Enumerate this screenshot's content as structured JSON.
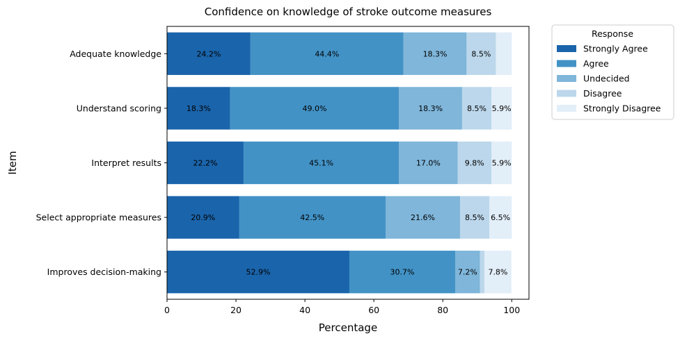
{
  "chart_data": {
    "type": "bar",
    "orientation": "horizontal",
    "stacked": true,
    "title": "Confidence on knowledge of stroke outcome measures",
    "xlabel": "Percentage",
    "ylabel": "Item",
    "xlim": [
      0,
      105
    ],
    "xticks": [
      0,
      20,
      40,
      60,
      80,
      100
    ],
    "grid": false,
    "legend": {
      "title": "Response",
      "placement": "outside-top-right"
    },
    "categories": [
      "Adequate knowledge",
      "Understand scoring",
      "Interpret results",
      "Select appropriate measures",
      "Improves decision-making"
    ],
    "series": [
      {
        "name": "Strongly Agree",
        "color": "#1a64ab",
        "values": [
          24.2,
          18.3,
          22.2,
          20.9,
          52.9
        ]
      },
      {
        "name": "Agree",
        "color": "#4292c6",
        "values": [
          44.4,
          49.0,
          45.1,
          42.5,
          30.7
        ]
      },
      {
        "name": "Undecided",
        "color": "#7fb6da",
        "values": [
          18.3,
          18.3,
          17.0,
          21.6,
          7.2
        ]
      },
      {
        "name": "Disagree",
        "color": "#bcd7eb",
        "values": [
          8.5,
          8.5,
          9.8,
          8.5,
          1.3
        ]
      },
      {
        "name": "Strongly Disagree",
        "color": "#e2eef8",
        "values": [
          4.6,
          5.9,
          5.9,
          6.5,
          7.8
        ]
      }
    ],
    "data_labels": [
      [
        "24.2%",
        "44.4%",
        "18.3%",
        "8.5%",
        ""
      ],
      [
        "18.3%",
        "49.0%",
        "18.3%",
        "8.5%",
        "5.9%"
      ],
      [
        "22.2%",
        "45.1%",
        "17.0%",
        "9.8%",
        "5.9%"
      ],
      [
        "20.9%",
        "42.5%",
        "21.6%",
        "8.5%",
        "6.5%"
      ],
      [
        "52.9%",
        "30.7%",
        "7.2%",
        "",
        "7.8%"
      ]
    ]
  }
}
